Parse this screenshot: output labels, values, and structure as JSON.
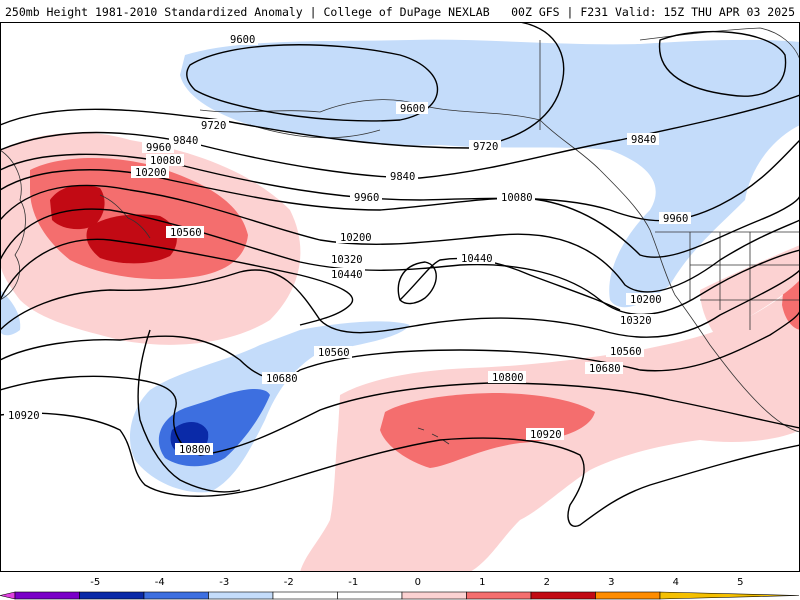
{
  "header": {
    "title_left": "250mb Height 1981-2010 Standardized Anomaly | College of DuPage NEXLAB",
    "title_right": "00Z GFS | F231 Valid: 15Z THU APR 03 2025"
  },
  "colors": {
    "neg5": "#e040e0",
    "neg4": "#7a00c8",
    "neg3": "#0a2aa8",
    "neg2": "#3d6fe0",
    "neg1": "#c4dcfa",
    "zero": "#ffffff",
    "pos1": "#fcd2d2",
    "pos2": "#f46e6e",
    "pos3": "#c20a14",
    "pos4": "#ff8c00",
    "pos5": "#f5c000",
    "contour": "#000000",
    "coast": "#333333"
  },
  "contours": [
    {
      "value": 9600,
      "labels": [
        "9600",
        "9600"
      ]
    },
    {
      "value": 9720,
      "labels": [
        "9720",
        "9720"
      ]
    },
    {
      "value": 9840,
      "labels": [
        "9840",
        "9840",
        "9840"
      ]
    },
    {
      "value": 9960,
      "labels": [
        "9960",
        "9960",
        "9960"
      ]
    },
    {
      "value": 10080,
      "labels": [
        "10080",
        "10080"
      ]
    },
    {
      "value": 10200,
      "labels": [
        "10200",
        "10200",
        "10200"
      ]
    },
    {
      "value": 10320,
      "labels": [
        "10320",
        "10320"
      ]
    },
    {
      "value": 10440,
      "labels": [
        "10440",
        "10440"
      ]
    },
    {
      "value": 10560,
      "labels": [
        "10560",
        "10560",
        "10560"
      ]
    },
    {
      "value": 10680,
      "labels": [
        "10680",
        "10680"
      ]
    },
    {
      "value": 10800,
      "labels": [
        "10800",
        "10800"
      ]
    },
    {
      "value": 10920,
      "labels": [
        "10920",
        "10920"
      ]
    }
  ],
  "legend": {
    "ticks": [
      "-5",
      "-4",
      "-3",
      "-2",
      "-1",
      "0",
      "1",
      "2",
      "3",
      "4",
      "5"
    ]
  }
}
